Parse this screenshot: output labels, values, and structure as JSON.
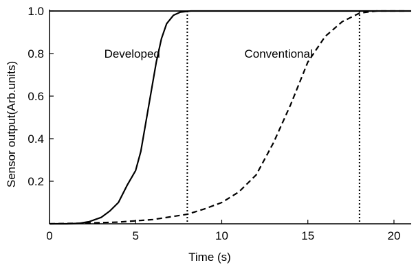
{
  "chart_data": {
    "type": "line",
    "xlabel": "Time (s)",
    "ylabel": "Sensor output(Arb.units)",
    "xlim": [
      0,
      21
    ],
    "ylim": [
      0,
      1.0
    ],
    "x_ticks": [
      0,
      5,
      10,
      15,
      20
    ],
    "y_ticks": [
      0.2,
      0.4,
      0.6,
      0.8,
      1.0
    ],
    "x_tick_labels": [
      "0",
      "5",
      "10",
      "15",
      "20"
    ],
    "y_tick_labels": [
      "0.2",
      "0.4",
      "0.6",
      "0.8",
      "1.0"
    ],
    "grid": false,
    "series": [
      {
        "name": "Developed",
        "line_style": "solid",
        "color": "#000000",
        "points": [
          [
            0,
            0
          ],
          [
            1,
            0
          ],
          [
            1.7,
            0.002
          ],
          [
            2.3,
            0.01
          ],
          [
            3.0,
            0.03
          ],
          [
            3.5,
            0.06
          ],
          [
            4.0,
            0.1
          ],
          [
            4.5,
            0.18
          ],
          [
            5.0,
            0.25
          ],
          [
            5.3,
            0.34
          ],
          [
            5.6,
            0.48
          ],
          [
            5.9,
            0.62
          ],
          [
            6.2,
            0.76
          ],
          [
            6.5,
            0.87
          ],
          [
            6.8,
            0.94
          ],
          [
            7.2,
            0.98
          ],
          [
            7.6,
            0.995
          ],
          [
            8.2,
            1.0
          ],
          [
            21,
            1.0
          ]
        ]
      },
      {
        "name": "Conventional",
        "line_style": "dashed",
        "color": "#000000",
        "points": [
          [
            0,
            0
          ],
          [
            2,
            0.003
          ],
          [
            4,
            0.008
          ],
          [
            6,
            0.02
          ],
          [
            8,
            0.045
          ],
          [
            9,
            0.07
          ],
          [
            10,
            0.1
          ],
          [
            11,
            0.15
          ],
          [
            12,
            0.23
          ],
          [
            13,
            0.38
          ],
          [
            14,
            0.56
          ],
          [
            14.5,
            0.66
          ],
          [
            15,
            0.76
          ],
          [
            16,
            0.88
          ],
          [
            17,
            0.95
          ],
          [
            18,
            0.99
          ],
          [
            19,
            1.0
          ],
          [
            20,
            1.0
          ],
          [
            20.8,
            1.0
          ]
        ]
      }
    ],
    "reference_lines": [
      {
        "x": 8,
        "style": "dotted",
        "color": "#000000"
      },
      {
        "x": 18,
        "style": "dotted",
        "color": "#000000"
      }
    ],
    "top_line": {
      "y": 1.0,
      "style": "solid",
      "color": "#000000"
    },
    "annotations": [
      {
        "text": "Developed",
        "x": 4.8,
        "y": 0.8
      },
      {
        "text": "Conventional",
        "x": 13.3,
        "y": 0.8
      }
    ]
  }
}
